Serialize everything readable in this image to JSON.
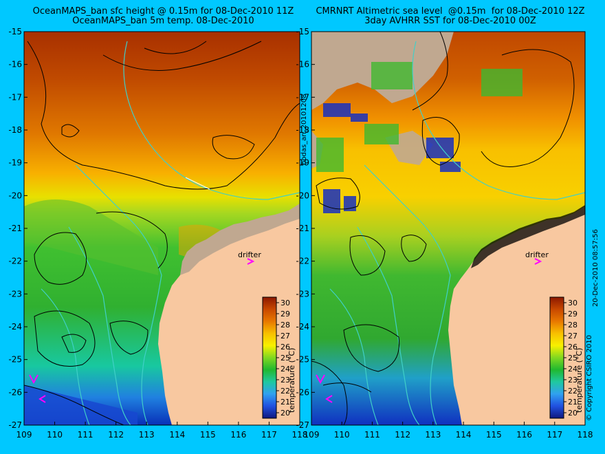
{
  "left_panel": {
    "title_line1": "OceanMAPS_ban sfc height @ 0.15m for 08-Dec-2010 11Z",
    "title_line2": "OceanMAPS_ban 5m temp. 08-Dec-2010"
  },
  "right_panel": {
    "title_line1": "CMRNRT Altimetric sea level  @0.15m  for 08-Dec-2010 12Z",
    "title_line2": "3day AVHRR SST for 08-Dec-2010 00Z"
  },
  "side_text": {
    "analysis_id": "bodas_an_20101208",
    "timestamp": "20-Dec-2010 08:57:56",
    "copyright": "© Copyright CSIRO 2010"
  },
  "axes": {
    "lon": [
      109,
      110,
      111,
      112,
      113,
      114,
      115,
      116,
      117,
      118
    ],
    "lat": [
      -15,
      -16,
      -17,
      -18,
      -19,
      -20,
      -21,
      -22,
      -23,
      -24,
      -25,
      -26,
      -27
    ],
    "lon_range": [
      109,
      118
    ],
    "lat_range": [
      -27,
      -15
    ]
  },
  "colorbar": {
    "label": "temperature (°C)",
    "ticks": [
      30,
      29,
      28,
      27,
      26,
      25,
      24,
      23,
      22,
      21,
      20
    ],
    "range": [
      19.5,
      30.5
    ]
  },
  "drifter": {
    "label": "drifter",
    "lon": 116.7,
    "lat": -22.0
  },
  "colors": {
    "background": "#00c8ff",
    "land": "#f8c8a0",
    "coast_shelf": "#c0a890",
    "contour": "#000000",
    "isobath": "#40d0c8",
    "marker": "#ff00ff"
  }
}
